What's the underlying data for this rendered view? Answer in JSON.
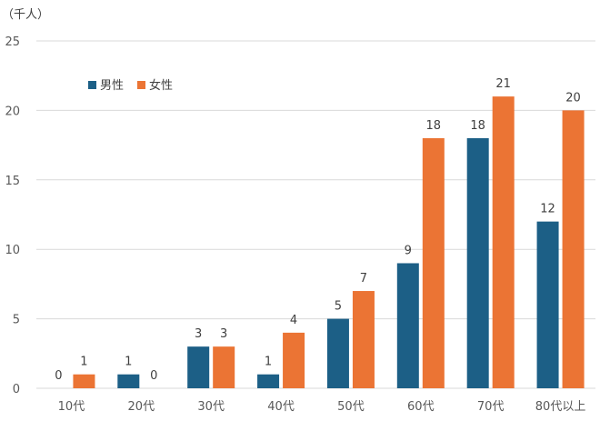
{
  "chart_data": {
    "type": "bar",
    "unit_label": "（千人）",
    "categories": [
      "10代",
      "20代",
      "30代",
      "40代",
      "50代",
      "60代",
      "70代",
      "80代以上"
    ],
    "series": [
      {
        "name": "男性",
        "color": "#1c5f86",
        "values": [
          0,
          1,
          3,
          1,
          5,
          9,
          18,
          12
        ]
      },
      {
        "name": "女性",
        "color": "#eb7434",
        "values": [
          1,
          0,
          3,
          4,
          7,
          18,
          21,
          20
        ]
      }
    ],
    "ylim": [
      0,
      25
    ],
    "yticks": [
      0,
      5,
      10,
      15,
      20,
      25
    ],
    "grid": true,
    "legend_position": "top-left"
  }
}
